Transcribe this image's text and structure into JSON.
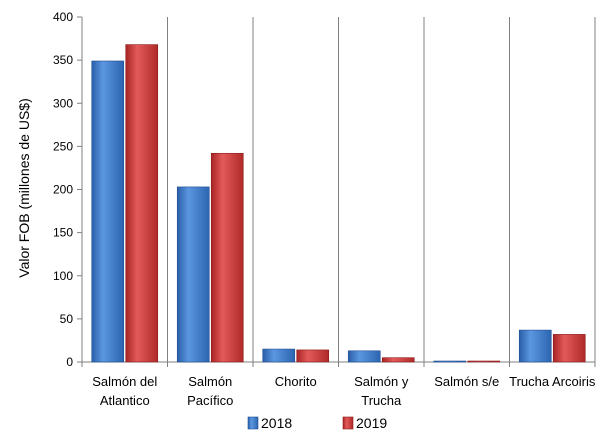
{
  "chart_data": {
    "type": "bar",
    "title": "",
    "xlabel": "",
    "ylabel": "Valor FOB (millones de US$)",
    "ylim": [
      0,
      400
    ],
    "yticks": [
      0,
      50,
      100,
      150,
      200,
      250,
      300,
      350,
      400
    ],
    "grid": false,
    "legend": "bottom",
    "categories": [
      [
        "Salmón del",
        "Atlantico"
      ],
      [
        "Salmón",
        "Pacífico"
      ],
      [
        "Chorito"
      ],
      [
        "Salmón y",
        "Trucha"
      ],
      [
        "Salmón s/e"
      ],
      [
        "Trucha Arcoiris"
      ]
    ],
    "series": [
      {
        "name": "2018",
        "color": "#3a78c9",
        "values": [
          349,
          203,
          15,
          13,
          1,
          37
        ]
      },
      {
        "name": "2019",
        "color": "#d23a3a",
        "values": [
          368,
          242,
          14,
          5,
          1,
          32
        ]
      }
    ]
  }
}
